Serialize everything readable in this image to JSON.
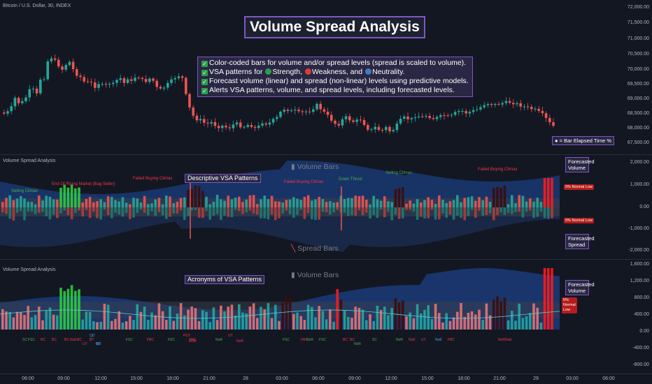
{
  "symbol_header": "Bitcoin / U.S. Dollar, 30, INDEX",
  "main": {
    "title": "Volume Spread Analysis",
    "info_lines": [
      {
        "prefix": "Color-coded bars for volume and/or spread levels (spread is scaled to volume).",
        "type": "plain"
      },
      {
        "type": "patterns",
        "a": "VSA patterns for ",
        "s": "Strength,",
        "w": "Weakness,",
        "and": "and",
        "n": "Neutrality."
      },
      {
        "prefix": "Forecast volume (linear) and spread (non-linear) levels using predictive models.",
        "type": "plain"
      },
      {
        "prefix": "Alerts VSA patterns, volume, and spread levels, including forecasted levels.",
        "type": "plain"
      }
    ],
    "elapsed_tag": "= Bar Elapsed Time %",
    "price_axis": [
      "72,000.00",
      "71,500.00",
      "71,000.00",
      "70,500.00",
      "70,000.00",
      "69,500.00",
      "69,000.00",
      "68,500.00",
      "68,000.00",
      "67,500.00"
    ]
  },
  "pane1": {
    "title": "Volume Spread Analysis",
    "heading": "Descriptive VSA Patterns",
    "watermark_top": "Volume Bars",
    "watermark_bottom": "Spread Bars",
    "forecasted_volume": "Forecasted Volume",
    "forecasted_spread": "Forecasted Spread",
    "legend_top": "5%  Normal  Low",
    "legend_bottom": "5%  Normal  Low",
    "patterns": [
      {
        "text": "Selling Climax",
        "color": "#4caf50"
      },
      {
        "text": "End Of Rising Market (Bag Seller)",
        "color": "#f23645"
      },
      {
        "text": "Failed Buying Climax",
        "color": "#f23645"
      },
      {
        "text": "Failed Buying Climax",
        "color": "#f23645"
      },
      {
        "text": "Down Thrust",
        "color": "#4caf50"
      },
      {
        "text": "Selling Climax",
        "color": "#4caf50"
      },
      {
        "text": "Failed Buying Climax",
        "color": "#f23645"
      }
    ],
    "axis": [
      "2,000.00",
      "1,000.00",
      "0.00",
      "-1,000.00",
      "-2,000.00"
    ]
  },
  "pane2": {
    "title": "Volume Spread Analysis",
    "heading": "Acronyms of VSA Patterns",
    "watermark": "Volume Bars",
    "forecasted_volume": "Forecasted Volume",
    "legend": [
      "5%",
      "Normal",
      "Low"
    ],
    "axis": [
      "1,600.00",
      "1,200.00",
      "800.00",
      "400.00",
      "0.00",
      "-400.00",
      "-800.00"
    ],
    "acronyms": [
      "SC",
      "FSC",
      "BC",
      "BC",
      "BC",
      "NoE",
      "BC",
      "UT",
      "BT",
      "BT",
      "QD",
      "QD",
      "FSC",
      "FBC",
      "FSC",
      "FBC",
      "PUT",
      "BOR",
      "NoR",
      "UT",
      "NoR",
      "FSC",
      "FBC",
      "NoR",
      "FSC",
      "BC",
      "BC",
      "NoR",
      "SC",
      "NoR",
      "NoE",
      "UT",
      "NoE",
      "FBC",
      "NoRNoE"
    ]
  },
  "time_axis": [
    "06:00",
    "09:00",
    "12:00",
    "15:00",
    "18:00",
    "21:00",
    "28",
    "03:00",
    "06:00",
    "09:00",
    "12:00",
    "15:00",
    "18:00",
    "21:00",
    "29",
    "03:00",
    "06:00"
  ],
  "colors": {
    "bg": "#131722",
    "up": "#26a69a",
    "down": "#ef5350",
    "accent": "#7e57c2",
    "band": "#1e4a9e"
  }
}
